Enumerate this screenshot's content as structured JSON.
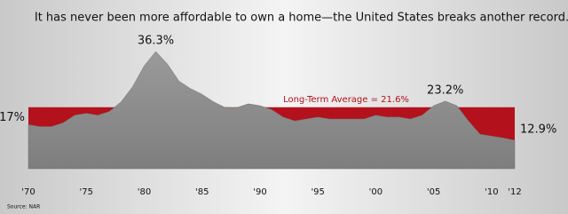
{
  "chart_data": {
    "type": "area",
    "title": "It has never been more affordable to own a home—the United States breaks another record.",
    "source": "Source: NAR",
    "average_label": "Long-Term Average = 21.6%",
    "average": 21.6,
    "average_color": "#b3111b",
    "color": "#8e8e8e",
    "x": [
      1970,
      1971,
      1972,
      1973,
      1974,
      1975,
      1976,
      1977,
      1978,
      1979,
      1980,
      1981,
      1982,
      1983,
      1984,
      1985,
      1986,
      1987,
      1988,
      1989,
      1990,
      1991,
      1992,
      1993,
      1994,
      1995,
      1996,
      1997,
      1998,
      1999,
      2000,
      2001,
      2002,
      2003,
      2004,
      2005,
      2006,
      2007,
      2008,
      2009,
      2010,
      2011,
      2012
    ],
    "values": [
      17.0,
      16.5,
      16.5,
      17.5,
      19.5,
      20.0,
      19.5,
      20.5,
      23.0,
      27.0,
      32.5,
      36.3,
      33.0,
      28.5,
      26.5,
      25.0,
      23.0,
      21.5,
      21.5,
      22.5,
      22.0,
      21.0,
      19.0,
      18.0,
      18.5,
      19.0,
      18.5,
      18.5,
      18.5,
      18.5,
      19.5,
      19.0,
      19.0,
      18.5,
      19.5,
      22.0,
      23.2,
      22.0,
      18.0,
      14.5,
      14.0,
      13.5,
      12.9
    ],
    "value_labels": [
      "17%",
      null,
      null,
      null,
      null,
      null,
      null,
      null,
      null,
      null,
      null,
      "36.3%",
      null,
      null,
      null,
      null,
      null,
      null,
      null,
      null,
      null,
      null,
      null,
      null,
      null,
      null,
      null,
      null,
      null,
      null,
      null,
      null,
      null,
      null,
      null,
      null,
      "23.2%",
      null,
      null,
      null,
      null,
      null,
      "12.9%"
    ],
    "xlim": [
      1970,
      2012
    ],
    "xticks": [
      {
        "value": 1970,
        "label": "'70"
      },
      {
        "value": 1975,
        "label": "'75"
      },
      {
        "value": 1980,
        "label": "'80"
      },
      {
        "value": 1985,
        "label": "'85"
      },
      {
        "value": 1990,
        "label": "'90"
      },
      {
        "value": 1995,
        "label": "'95"
      },
      {
        "value": 2000,
        "label": "'00"
      },
      {
        "value": 2005,
        "label": "'05"
      },
      {
        "value": 2010,
        "label": "'10"
      },
      {
        "value": 2012,
        "label": "'12"
      }
    ]
  }
}
